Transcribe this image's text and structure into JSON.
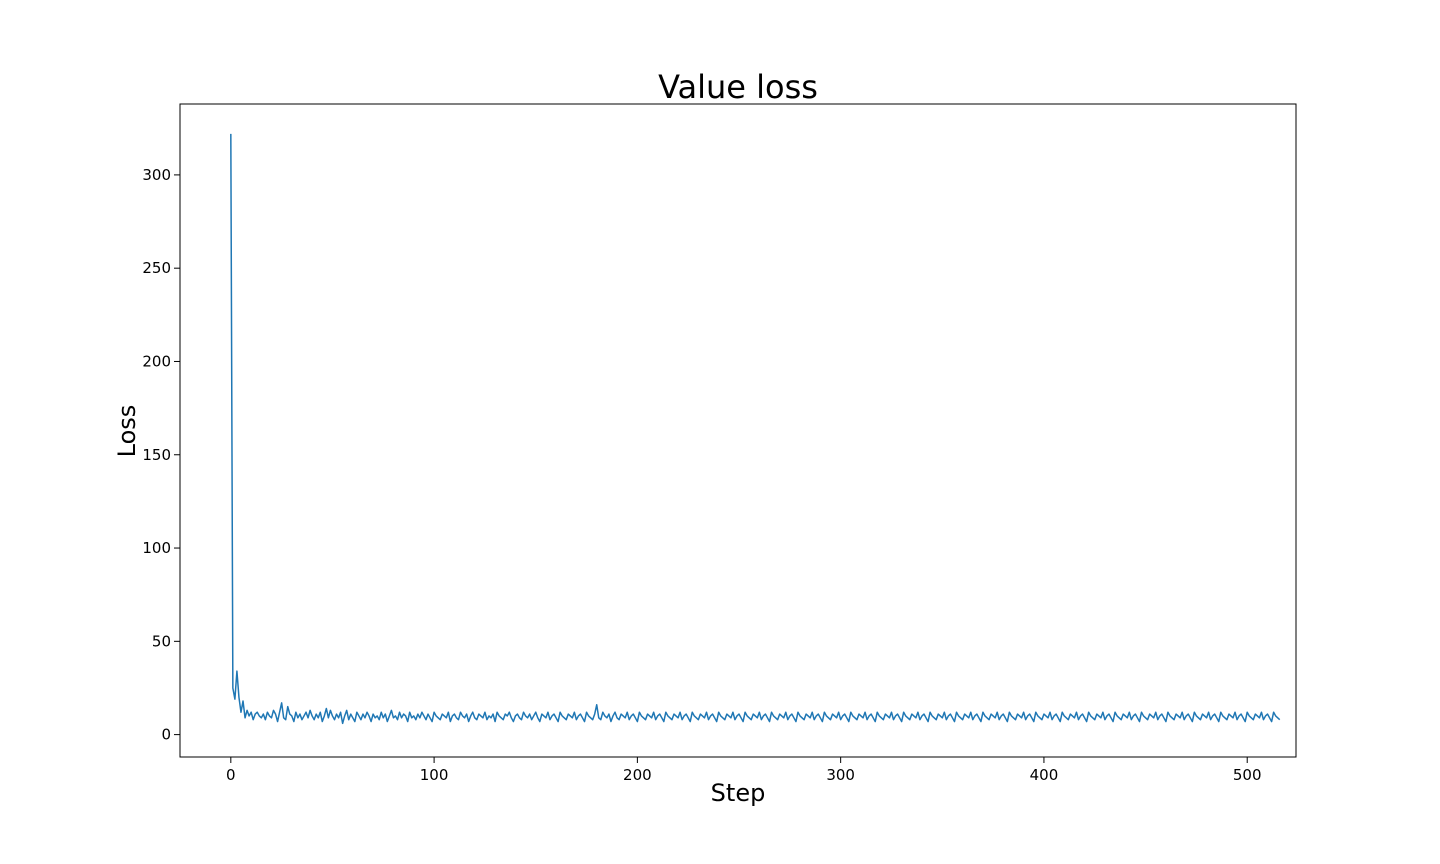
{
  "chart_data": {
    "type": "line",
    "title": "Value loss",
    "xlabel": "Step",
    "ylabel": "Loss",
    "xlim": [
      -25,
      524
    ],
    "ylim": [
      -12,
      338
    ],
    "xticks": [
      0,
      100,
      200,
      300,
      400,
      500
    ],
    "yticks": [
      0,
      50,
      100,
      150,
      200,
      250,
      300
    ],
    "grid": false,
    "legend": "none",
    "series": [
      {
        "name": "Value loss",
        "color": "#1f77b4",
        "x_start": 0,
        "x_step": 1,
        "values": [
          322,
          25,
          19,
          34,
          20,
          12,
          18,
          9,
          13,
          10,
          12,
          8,
          11,
          12,
          10,
          9,
          11,
          8,
          12,
          10,
          9,
          13,
          11,
          7,
          12,
          17,
          9,
          8,
          15,
          11,
          10,
          7,
          12,
          9,
          11,
          8,
          10,
          12,
          9,
          13,
          10,
          8,
          11,
          9,
          12,
          7,
          10,
          14,
          9,
          13,
          10,
          8,
          11,
          9,
          12,
          6,
          10,
          13,
          8,
          11,
          9,
          7,
          12,
          10,
          8,
          11,
          9,
          12,
          10,
          7,
          11,
          9,
          10,
          8,
          12,
          9,
          11,
          7,
          10,
          13,
          9,
          10,
          8,
          12,
          9,
          11,
          10,
          7,
          12,
          9,
          10,
          8,
          11,
          9,
          12,
          10,
          8,
          11,
          9,
          7,
          12,
          10,
          9,
          8,
          11,
          10,
          9,
          12,
          7,
          10,
          11,
          9,
          8,
          12,
          10,
          9,
          11,
          7,
          10,
          12,
          9,
          8,
          11,
          10,
          9,
          12,
          8,
          10,
          9,
          11,
          7,
          12,
          10,
          9,
          8,
          11,
          10,
          12,
          9,
          7,
          10,
          11,
          9,
          8,
          12,
          10,
          9,
          11,
          8,
          10,
          12,
          9,
          7,
          11,
          10,
          9,
          12,
          8,
          10,
          11,
          9,
          7,
          12,
          10,
          9,
          8,
          11,
          10,
          9,
          12,
          8,
          10,
          11,
          9,
          7,
          12,
          10,
          9,
          8,
          11,
          16,
          9,
          8,
          12,
          10,
          9,
          11,
          7,
          10,
          12,
          9,
          8,
          11,
          10,
          9,
          12,
          8,
          10,
          11,
          9,
          7,
          12,
          10,
          9,
          8,
          11,
          10,
          9,
          12,
          8,
          10,
          11,
          9,
          7,
          12,
          10,
          9,
          8,
          11,
          10,
          9,
          12,
          8,
          10,
          11,
          9,
          7,
          12,
          10,
          9,
          8,
          11,
          10,
          9,
          12,
          8,
          10,
          11,
          9,
          7,
          12,
          10,
          9,
          8,
          11,
          10,
          9,
          12,
          8,
          10,
          11,
          9,
          7,
          12,
          10,
          9,
          8,
          11,
          10,
          9,
          12,
          8,
          10,
          11,
          9,
          7,
          12,
          10,
          9,
          8,
          11,
          10,
          9,
          12,
          8,
          10,
          11,
          9,
          7,
          12,
          10,
          9,
          8,
          11,
          10,
          9,
          12,
          8,
          10,
          11,
          9,
          7,
          12,
          10,
          9,
          8,
          11,
          10,
          9,
          12,
          8,
          10,
          11,
          9,
          7,
          12,
          10,
          9,
          8,
          11,
          10,
          9,
          12,
          8,
          10,
          11,
          9,
          7,
          12,
          10,
          9,
          8,
          11,
          10,
          9,
          12,
          8,
          10,
          11,
          9,
          7,
          12,
          10,
          9,
          8,
          11,
          10,
          9,
          12,
          8,
          10,
          11,
          9,
          7,
          12,
          10,
          9,
          8,
          11,
          10,
          9,
          12,
          8,
          10,
          11,
          9,
          7,
          12,
          10,
          9,
          8,
          11,
          10,
          9,
          12,
          8,
          10,
          11,
          9,
          7,
          12,
          10,
          9,
          8,
          11,
          10,
          9,
          12,
          8,
          10,
          11,
          9,
          7,
          12,
          10,
          9,
          8,
          11,
          10,
          9,
          12,
          8,
          10,
          11,
          9,
          7,
          12,
          10,
          9,
          8,
          11,
          10,
          9,
          12,
          8,
          10,
          11,
          9,
          7,
          12,
          10,
          9,
          8,
          11,
          10,
          9,
          12,
          8,
          10,
          11,
          9,
          7,
          12,
          10,
          9,
          8,
          11,
          10,
          9,
          12,
          8,
          10,
          11,
          9,
          7,
          12,
          10,
          9,
          8,
          11,
          10,
          9,
          12,
          8,
          10,
          11,
          9,
          7,
          12,
          10,
          9,
          8,
          11,
          10,
          9,
          12,
          8,
          10,
          11,
          9,
          7,
          12,
          10,
          9,
          8,
          11,
          10,
          9,
          12,
          8,
          10,
          11,
          9,
          7,
          12,
          10,
          9,
          8,
          11,
          10,
          9,
          12,
          8,
          10,
          11,
          9,
          7,
          12,
          10,
          9,
          8,
          11,
          10,
          9,
          12,
          8,
          10,
          11,
          9,
          7,
          12,
          10,
          9,
          8,
          11,
          10,
          9,
          12,
          8,
          10,
          11,
          9,
          7,
          12,
          10,
          9,
          8
        ]
      }
    ]
  }
}
